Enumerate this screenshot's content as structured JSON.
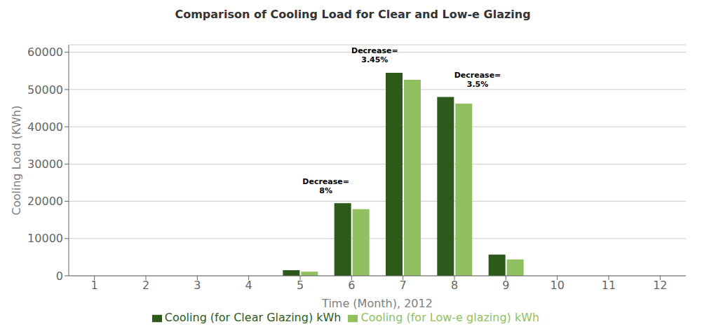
{
  "chart_data": {
    "type": "bar",
    "title": "Comparison of Cooling Load for Clear and Low-e Glazing",
    "xlabel": "Time (Month), 2012",
    "ylabel": "Cooling Load (KWh)",
    "x": [
      1,
      2,
      3,
      4,
      5,
      6,
      7,
      8,
      9,
      10,
      11,
      12
    ],
    "xlim": [
      0.5,
      12.5
    ],
    "xticks": [
      1,
      2,
      3,
      4,
      5,
      6,
      7,
      8,
      9,
      10,
      11,
      12
    ],
    "series": [
      {
        "name": "Cooling (for Clear Glazing) kWh",
        "color": "#2d5a1b",
        "values": [
          0,
          0,
          0,
          0,
          1500,
          19500,
          54500,
          48000,
          5700,
          0,
          0,
          0
        ]
      },
      {
        "name": "Cooling (for Low-e glazing) kWh",
        "color": "#90c060",
        "values": [
          0,
          0,
          0,
          0,
          1100,
          17900,
          52600,
          46200,
          4400,
          0,
          0,
          0
        ]
      }
    ],
    "annotations": [
      {
        "text": "Decrease=\n8%",
        "x": 5.5,
        "y": 21500
      },
      {
        "text": "Decrease=\n3.45%",
        "x": 6.45,
        "y": 56500
      },
      {
        "text": "Decrease=\n3.5%",
        "x": 8.45,
        "y": 50000
      }
    ],
    "ylim": [
      0,
      62000
    ],
    "yticks": [
      0,
      10000,
      20000,
      30000,
      40000,
      50000,
      60000
    ],
    "grid": true,
    "legend": "bottom"
  }
}
